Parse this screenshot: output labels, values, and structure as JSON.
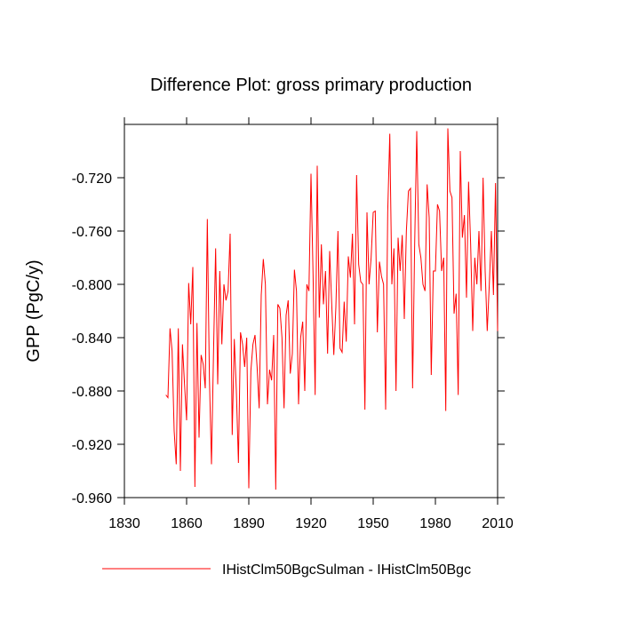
{
  "chart_data": {
    "type": "line",
    "title": "Difference Plot: gross primary production",
    "y_label": "GPP  (PgC/y)",
    "x": [
      1850,
      1851,
      1852,
      1853,
      1854,
      1855,
      1856,
      1857,
      1858,
      1859,
      1860,
      1861,
      1862,
      1863,
      1864,
      1865,
      1866,
      1867,
      1868,
      1869,
      1870,
      1871,
      1872,
      1873,
      1874,
      1875,
      1876,
      1877,
      1878,
      1879,
      1880,
      1881,
      1882,
      1883,
      1884,
      1885,
      1886,
      1887,
      1888,
      1889,
      1890,
      1891,
      1892,
      1893,
      1894,
      1895,
      1896,
      1897,
      1898,
      1899,
      1900,
      1901,
      1902,
      1903,
      1904,
      1905,
      1906,
      1907,
      1908,
      1909,
      1910,
      1911,
      1912,
      1913,
      1914,
      1915,
      1916,
      1917,
      1918,
      1919,
      1920,
      1921,
      1922,
      1923,
      1924,
      1925,
      1926,
      1927,
      1928,
      1929,
      1930,
      1931,
      1932,
      1933,
      1934,
      1935,
      1936,
      1937,
      1938,
      1939,
      1940,
      1941,
      1942,
      1943,
      1944,
      1945,
      1946,
      1947,
      1948,
      1949,
      1950,
      1951,
      1952,
      1953,
      1954,
      1955,
      1956,
      1957,
      1958,
      1959,
      1960,
      1961,
      1962,
      1963,
      1964,
      1965,
      1966,
      1967,
      1968,
      1969,
      1970,
      1971,
      1972,
      1973,
      1974,
      1975,
      1976,
      1977,
      1978,
      1979,
      1980,
      1981,
      1982,
      1983,
      1984,
      1985,
      1986,
      1987,
      1988,
      1989,
      1990,
      1991,
      1992,
      1993,
      1994,
      1995,
      1996,
      1997,
      1998,
      1999,
      2000,
      2001,
      2002,
      2003,
      2004,
      2005,
      2006,
      2007,
      2008,
      2009,
      2010
    ],
    "series": [
      {
        "name": "IHistClm50BgcSulman - IHistClm50Bgc",
        "color": "#ff0000",
        "values": [
          -0.883,
          -0.885,
          -0.833,
          -0.85,
          -0.91,
          -0.935,
          -0.833,
          -0.94,
          -0.845,
          -0.875,
          -0.902,
          -0.799,
          -0.83,
          -0.787,
          -0.952,
          -0.829,
          -0.915,
          -0.853,
          -0.86,
          -0.878,
          -0.751,
          -0.87,
          -0.935,
          -0.85,
          -0.773,
          -0.875,
          -0.79,
          -0.845,
          -0.8,
          -0.812,
          -0.805,
          -0.762,
          -0.913,
          -0.841,
          -0.88,
          -0.934,
          -0.836,
          -0.845,
          -0.862,
          -0.84,
          -0.953,
          -0.865,
          -0.845,
          -0.838,
          -0.862,
          -0.893,
          -0.808,
          -0.781,
          -0.8,
          -0.89,
          -0.864,
          -0.872,
          -0.838,
          -0.954,
          -0.815,
          -0.818,
          -0.84,
          -0.893,
          -0.823,
          -0.812,
          -0.867,
          -0.852,
          -0.789,
          -0.805,
          -0.89,
          -0.84,
          -0.828,
          -0.88,
          -0.8,
          -0.805,
          -0.717,
          -0.793,
          -0.883,
          -0.711,
          -0.825,
          -0.77,
          -0.815,
          -0.79,
          -0.852,
          -0.775,
          -0.815,
          -0.853,
          -0.817,
          -0.76,
          -0.848,
          -0.851,
          -0.813,
          -0.843,
          -0.779,
          -0.795,
          -0.762,
          -0.83,
          -0.718,
          -0.785,
          -0.798,
          -0.8,
          -0.894,
          -0.746,
          -0.8,
          -0.78,
          -0.746,
          -0.745,
          -0.836,
          -0.783,
          -0.794,
          -0.8,
          -0.894,
          -0.746,
          -0.687,
          -0.8,
          -0.773,
          -0.88,
          -0.765,
          -0.79,
          -0.763,
          -0.826,
          -0.76,
          -0.73,
          -0.728,
          -0.878,
          -0.77,
          -0.685,
          -0.77,
          -0.78,
          -0.8,
          -0.805,
          -0.725,
          -0.75,
          -0.868,
          -0.79,
          -0.79,
          -0.74,
          -0.745,
          -0.79,
          -0.78,
          -0.895,
          -0.683,
          -0.73,
          -0.735,
          -0.822,
          -0.807,
          -0.883,
          -0.7,
          -0.765,
          -0.748,
          -0.81,
          -0.723,
          -0.77,
          -0.835,
          -0.78,
          -0.8,
          -0.76,
          -0.805,
          -0.72,
          -0.79,
          -0.835,
          -0.8,
          -0.76,
          -0.808,
          -0.724,
          -0.835
        ]
      }
    ],
    "xlim": [
      1830,
      2010
    ],
    "xticks": [
      1830,
      1860,
      1890,
      1920,
      1950,
      1980,
      2010
    ],
    "ylim": [
      -0.96,
      -0.68
    ],
    "yticks": [
      {
        "value": -0.96,
        "label": "-0.960"
      },
      {
        "value": -0.92,
        "label": "-0.920"
      },
      {
        "value": -0.88,
        "label": "-0.880"
      },
      {
        "value": -0.84,
        "label": "-0.840"
      },
      {
        "value": -0.8,
        "label": "-0.800"
      },
      {
        "value": -0.76,
        "label": "-0.760"
      },
      {
        "value": -0.72,
        "label": "-0.720"
      }
    ],
    "grid": false,
    "legend": "bottom"
  }
}
